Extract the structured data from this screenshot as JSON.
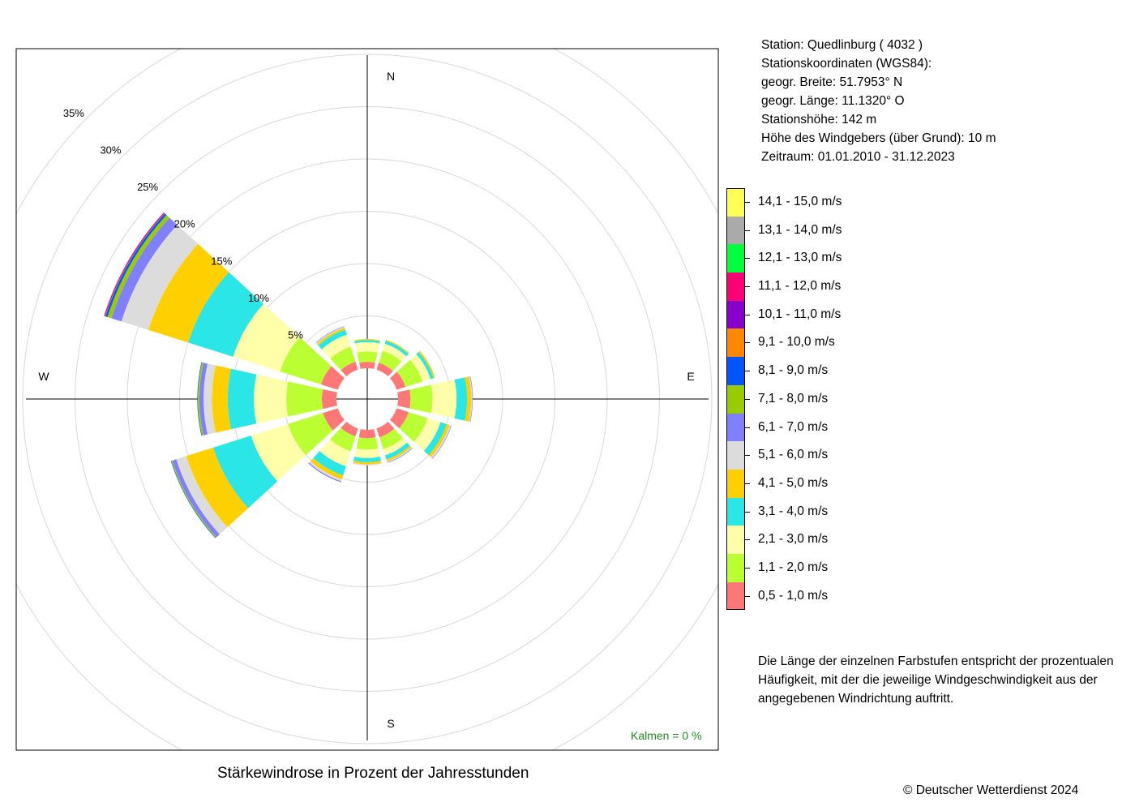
{
  "station": {
    "line1": "Station:  Quedlinburg  ( 4032 )",
    "line2": "Stationskoordinaten (WGS84):",
    "line3": "geogr. Breite: 51.7953° N",
    "line4": "geogr. Länge: 11.1320° O",
    "line5": "Stationshöhe: 142 m",
    "line6": "Höhe des Windgebers (über Grund): 10 m",
    "line7": "Zeitraum: 01.01.2010 - 31.12.2023"
  },
  "legend": [
    {
      "label": "14,1 - 15,0 m/s",
      "color": "#ffff55"
    },
    {
      "label": "13,1 - 14,0 m/s",
      "color": "#aaaaaa"
    },
    {
      "label": "12,1 - 13,0 m/s",
      "color": "#00ff3c"
    },
    {
      "label": "11,1 - 12,0 m/s",
      "color": "#ff0077"
    },
    {
      "label": "10,1 - 11,0 m/s",
      "color": "#8800cc"
    },
    {
      "label": "9,1 - 10,0 m/s",
      "color": "#ff8800"
    },
    {
      "label": "8,1 - 9,0 m/s",
      "color": "#0055ff"
    },
    {
      "label": "7,1 - 8,0 m/s",
      "color": "#99cc00"
    },
    {
      "label": "6,1 - 7,0 m/s",
      "color": "#8080ff"
    },
    {
      "label": "5,1 - 6,0 m/s",
      "color": "#dcdcdc"
    },
    {
      "label": "4,1 - 5,0 m/s",
      "color": "#ffd000"
    },
    {
      "label": "3,1 - 4,0 m/s",
      "color": "#2ae6e6"
    },
    {
      "label": "2,1 - 3,0 m/s",
      "color": "#ffffaa"
    },
    {
      "label": "1,1 - 2,0 m/s",
      "color": "#bbff33"
    },
    {
      "label": "0,5 - 1,0 m/s",
      "color": "#ff7777"
    }
  ],
  "note": "Die Länge der einzelnen Farbstufen entspricht der prozentualen Häufigkeit, mit der die jeweilige Windgeschwindigkeit aus der angegebenen Windrichtung auftritt.",
  "caption": "Stärkewindrose in Prozent der Jahresstunden",
  "copyright": "© Deutscher Wetterdienst  2024",
  "calm": "Kalmen  =  0 %",
  "chart_data": {
    "type": "wind-rose",
    "unit": "%",
    "radial_ticks": [
      "5%",
      "10%",
      "15%",
      "20%",
      "25%",
      "30%",
      "35%"
    ],
    "radial_tick_values": [
      5,
      10,
      15,
      20,
      25,
      30,
      35
    ],
    "compass": {
      "N": "N",
      "E": "E",
      "S": "S",
      "W": "W"
    },
    "directions_deg": [
      0,
      30,
      60,
      90,
      120,
      150,
      180,
      210,
      240,
      270,
      300,
      330
    ],
    "speed_classes": [
      "0,5 - 1,0 m/s",
      "1,1 - 2,0 m/s",
      "2,1 - 3,0 m/s",
      "3,1 - 4,0 m/s",
      "4,1 - 5,0 m/s",
      "5,1 - 6,0 m/s",
      "6,1 - 7,0 m/s",
      "7,1 - 8,0 m/s",
      "8,1 - 9,0 m/s",
      "9,1 - 10,0 m/s",
      "10,1 - 11,0 m/s",
      "11,1 - 12,0 m/s",
      "12,1 - 13,0 m/s",
      "13,1 - 14,0 m/s",
      "14,1 - 15,0 m/s"
    ],
    "series": [
      {
        "direction": 0,
        "values": [
          0.6,
          1.0,
          0.9,
          0.2,
          0.1,
          0,
          0,
          0,
          0,
          0,
          0,
          0,
          0,
          0,
          0
        ]
      },
      {
        "direction": 30,
        "values": [
          0.7,
          1.2,
          0.7,
          0.3,
          0.1,
          0,
          0,
          0,
          0,
          0,
          0,
          0,
          0,
          0,
          0
        ]
      },
      {
        "direction": 60,
        "values": [
          0.9,
          1.7,
          0.8,
          0.3,
          0.15,
          0,
          0,
          0,
          0,
          0,
          0,
          0,
          0,
          0,
          0
        ]
      },
      {
        "direction": 90,
        "values": [
          1.2,
          2.1,
          2.3,
          1.0,
          0.4,
          0.1,
          0.05,
          0,
          0,
          0,
          0,
          0,
          0,
          0,
          0
        ]
      },
      {
        "direction": 120,
        "values": [
          1.2,
          1.9,
          1.3,
          0.6,
          0.3,
          0.15,
          0.05,
          0,
          0,
          0,
          0,
          0,
          0,
          0,
          0
        ]
      },
      {
        "direction": 150,
        "values": [
          0.9,
          1.2,
          0.6,
          0.4,
          0.2,
          0.1,
          0.05,
          0,
          0,
          0,
          0,
          0,
          0,
          0,
          0
        ]
      },
      {
        "direction": 180,
        "values": [
          0.8,
          1.1,
          0.8,
          0.4,
          0.2,
          0.1,
          0,
          0,
          0,
          0,
          0,
          0,
          0,
          0,
          0
        ]
      },
      {
        "direction": 210,
        "values": [
          0.8,
          1.5,
          1.5,
          0.9,
          0.4,
          0.2,
          0.1,
          0,
          0,
          0,
          0,
          0,
          0,
          0,
          0
        ]
      },
      {
        "direction": 240,
        "values": [
          1.5,
          3.5,
          3.7,
          3.8,
          2.7,
          1.0,
          0.4,
          0.1,
          0.05,
          0,
          0,
          0,
          0,
          0,
          0
        ]
      },
      {
        "direction": 270,
        "values": [
          1.4,
          3.4,
          3.1,
          2.5,
          1.5,
          0.8,
          0.4,
          0.15,
          0.05,
          0,
          0,
          0,
          0,
          0,
          0
        ]
      },
      {
        "direction": 300,
        "values": [
          1.7,
          4.1,
          4.7,
          4.5,
          4.0,
          2.7,
          1.0,
          0.4,
          0.2,
          0.05,
          0.05,
          0.05,
          0,
          0,
          0
        ]
      },
      {
        "direction": 330,
        "values": [
          0.8,
          1.5,
          1.2,
          0.5,
          0.2,
          0.1,
          0.05,
          0,
          0,
          0,
          0,
          0,
          0,
          0,
          0
        ]
      }
    ]
  }
}
